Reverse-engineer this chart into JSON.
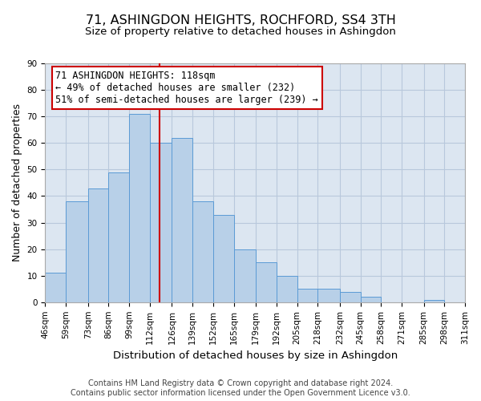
{
  "title": "71, ASHINGDON HEIGHTS, ROCHFORD, SS4 3TH",
  "subtitle": "Size of property relative to detached houses in Ashingdon",
  "xlabel": "Distribution of detached houses by size in Ashingdon",
  "ylabel": "Number of detached properties",
  "bar_edges": [
    46,
    59,
    73,
    86,
    99,
    112,
    126,
    139,
    152,
    165,
    179,
    192,
    205,
    218,
    232,
    245,
    258,
    271,
    285,
    298,
    311
  ],
  "bar_heights": [
    11,
    38,
    43,
    49,
    71,
    60,
    62,
    38,
    33,
    20,
    15,
    10,
    5,
    5,
    4,
    2,
    0,
    0,
    1,
    0,
    1
  ],
  "bar_color": "#b8d0e8",
  "bar_edgecolor": "#5b9bd5",
  "property_line_x": 118,
  "annotation_line1": "71 ASHINGDON HEIGHTS: 118sqm",
  "annotation_line2": "← 49% of detached houses are smaller (232)",
  "annotation_line3": "51% of semi-detached houses are larger (239) →",
  "annotation_box_color": "#ffffff",
  "annotation_box_edgecolor": "#cc0000",
  "vline_color": "#cc0000",
  "ylim": [
    0,
    90
  ],
  "yticks": [
    0,
    10,
    20,
    30,
    40,
    50,
    60,
    70,
    80,
    90
  ],
  "tick_labels": [
    "46sqm",
    "59sqm",
    "73sqm",
    "86sqm",
    "99sqm",
    "112sqm",
    "126sqm",
    "139sqm",
    "152sqm",
    "165sqm",
    "179sqm",
    "192sqm",
    "205sqm",
    "218sqm",
    "232sqm",
    "245sqm",
    "258sqm",
    "271sqm",
    "285sqm",
    "298sqm",
    "311sqm"
  ],
  "footer_line1": "Contains HM Land Registry data © Crown copyright and database right 2024.",
  "footer_line2": "Contains public sector information licensed under the Open Government Licence v3.0.",
  "background_color": "#ffffff",
  "plot_bg_color": "#dce6f1",
  "grid_color": "#b8c8dc",
  "title_fontsize": 11.5,
  "subtitle_fontsize": 9.5,
  "xlabel_fontsize": 9.5,
  "ylabel_fontsize": 9,
  "tick_fontsize": 7.5,
  "annotation_fontsize": 8.5,
  "footer_fontsize": 7
}
